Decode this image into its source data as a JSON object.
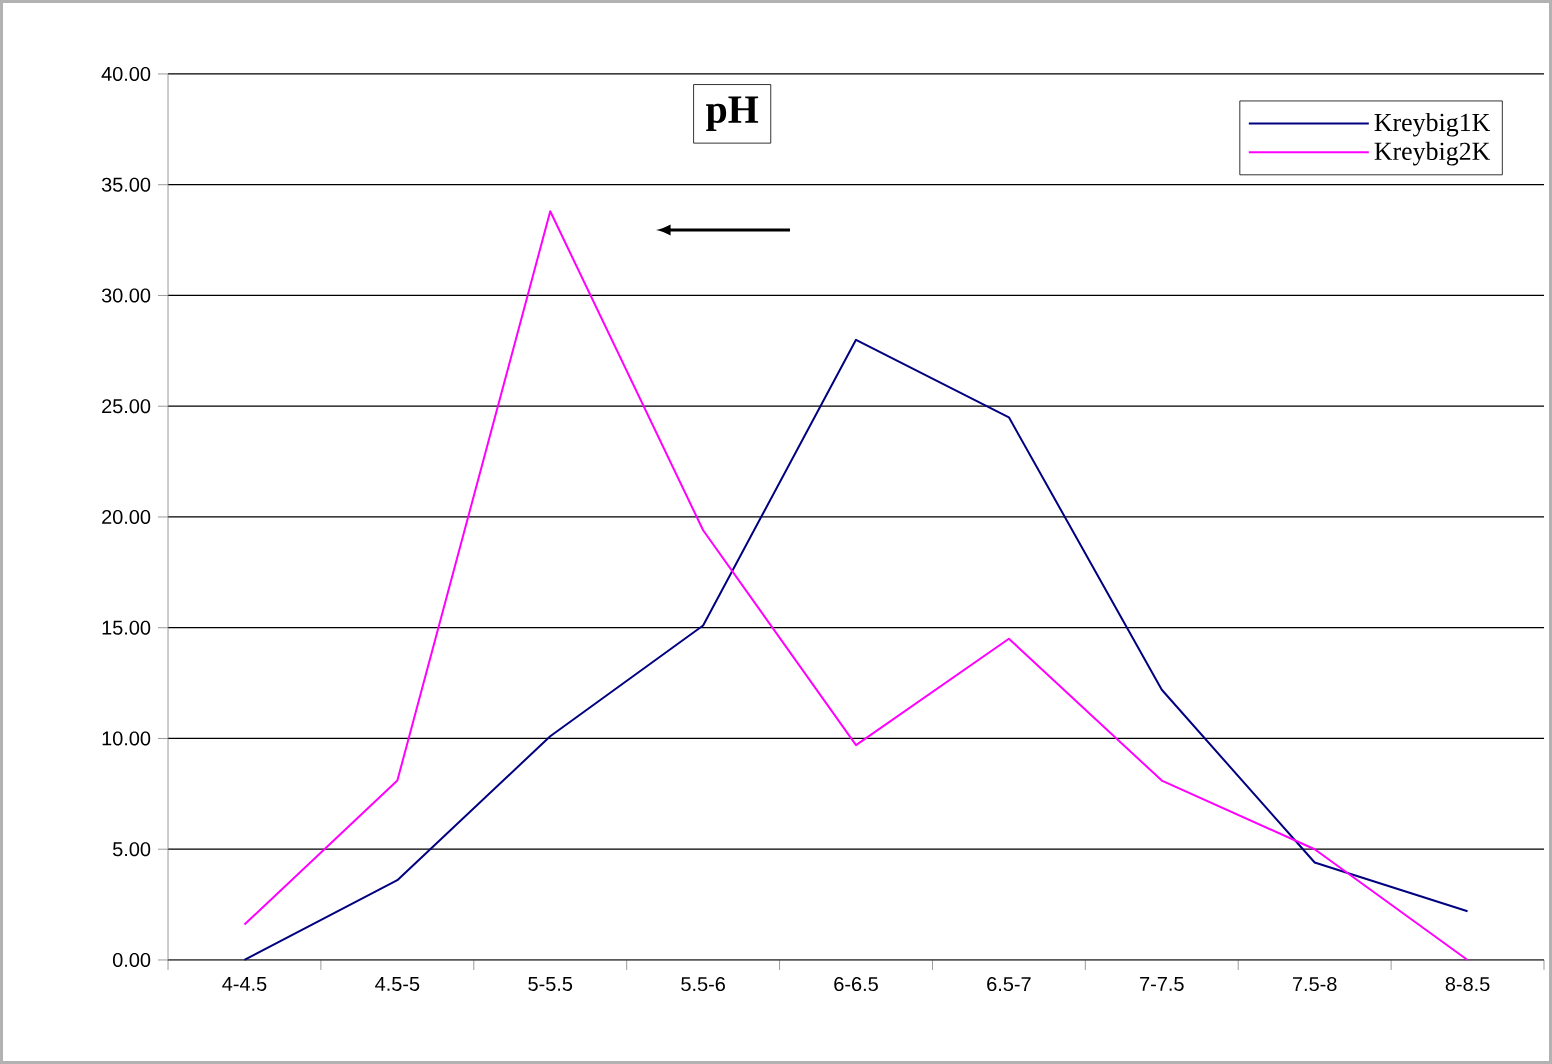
{
  "chart_data": {
    "type": "line",
    "title": "pH",
    "categories": [
      "4-4.5",
      "4.5-5",
      "5-5.5",
      "5.5-6",
      "6-6.5",
      "6.5-7",
      "7-7.5",
      "7.5-8",
      "8-8.5"
    ],
    "series": [
      {
        "name": "Kreybig1K",
        "color": "#000080",
        "values": [
          0,
          3.6,
          10.1,
          15.1,
          28.0,
          24.5,
          12.2,
          4.4,
          2.2
        ]
      },
      {
        "name": "Kreybig2K",
        "color": "#ff00ff",
        "values": [
          1.6,
          8.1,
          33.8,
          19.4,
          9.7,
          14.5,
          8.1,
          5.0,
          0
        ]
      }
    ],
    "ylim": [
      0,
      40
    ],
    "yticks": [
      {
        "value": 0,
        "label": "0.00"
      },
      {
        "value": 5,
        "label": "5.00"
      },
      {
        "value": 10,
        "label": "10.00"
      },
      {
        "value": 15,
        "label": "15.00"
      },
      {
        "value": 20,
        "label": "20.00"
      },
      {
        "value": 25,
        "label": "25.00"
      },
      {
        "value": 30,
        "label": "30.00"
      },
      {
        "value": 35,
        "label": "35.00"
      },
      {
        "value": 40,
        "label": "40.00"
      }
    ],
    "grid": "y",
    "legend": "top right",
    "marker": "none",
    "line_style": "solid"
  }
}
